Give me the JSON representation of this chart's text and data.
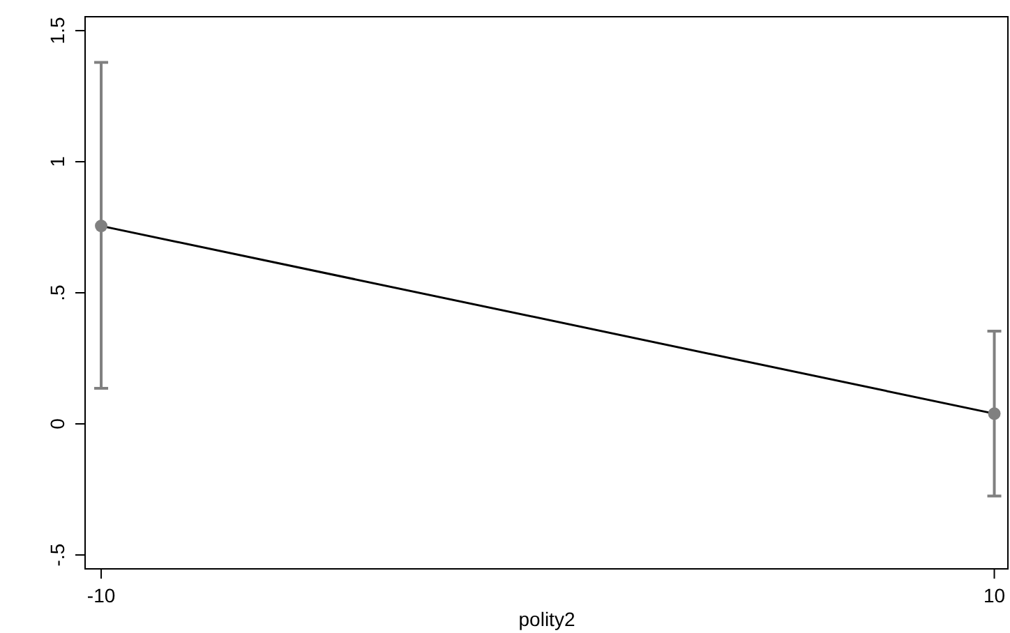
{
  "chart_data": {
    "type": "line",
    "xlabel": "polity2",
    "x": [
      -10,
      10
    ],
    "series": [
      {
        "color": "#000000",
        "marker": "none",
        "values": [
          0.755,
          0.039
        ]
      },
      {
        "type": "scatter",
        "color": "#808080",
        "marker": "circle",
        "values": [
          0.755,
          0.039
        ],
        "errors": [
          [
            0.136,
            1.379
          ],
          [
            -0.275,
            0.354
          ]
        ]
      }
    ],
    "xlim": [
      -10.36,
      10.32
    ],
    "xticks": [
      -10,
      10
    ],
    "ylim": [
      -0.553,
      1.553
    ],
    "yticks": [
      {
        "value": -0.5,
        "label": "-.5"
      },
      0,
      {
        "value": 0.5,
        "label": ".5"
      },
      1,
      1.5
    ],
    "grid": false
  }
}
